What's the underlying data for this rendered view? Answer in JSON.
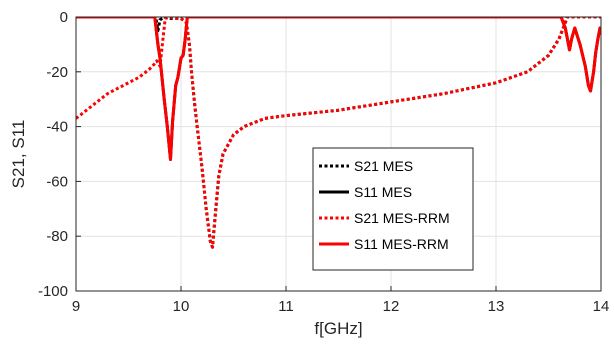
{
  "chart_data": {
    "type": "line",
    "xlabel": "f[GHz]",
    "ylabel": "S21, S11",
    "xlim": [
      9,
      14
    ],
    "ylim": [
      -100,
      0
    ],
    "xticks": [
      9,
      10,
      11,
      12,
      13,
      14
    ],
    "yticks": [
      0,
      -20,
      -40,
      -60,
      -80,
      -100
    ],
    "grid": true,
    "legend_position": "center",
    "series": [
      {
        "name": "S21 MES",
        "color": "#000000",
        "style": "dotted",
        "x": [
          9.0,
          9.76,
          9.78,
          9.8,
          9.85,
          9.9,
          9.95,
          10.0,
          10.05,
          10.08,
          10.1,
          10.13,
          10.16,
          10.2,
          10.24,
          10.28,
          10.3,
          10.32,
          10.36,
          10.4,
          10.5,
          10.6,
          10.8,
          11.0,
          11.5,
          12.0,
          12.5,
          13.0,
          13.3,
          13.5,
          13.6,
          13.65,
          13.68,
          13.7,
          13.73,
          13.78,
          13.83,
          13.87,
          13.9,
          13.93,
          13.95,
          13.98,
          14.0
        ],
        "y": [
          0,
          0,
          -5,
          -1,
          0,
          -0.5,
          -0.5,
          -0.5,
          -2,
          -10,
          -20,
          -32,
          -42,
          -55,
          -70,
          -82,
          -84,
          -75,
          -58,
          -50,
          -43,
          -40,
          -37,
          -36,
          -34,
          -31,
          -28,
          -24,
          -20,
          -14,
          -8,
          -3,
          0,
          0,
          0,
          0,
          0,
          0,
          0,
          0,
          0,
          0,
          0
        ]
      },
      {
        "name": "S11 MES",
        "color": "#000000",
        "style": "solid",
        "x": [
          9.0,
          9.75,
          9.78,
          9.8,
          9.84,
          9.87,
          9.9,
          9.92,
          9.95,
          9.97,
          10.0,
          10.02,
          10.04,
          10.06,
          10.1,
          10.2,
          11.0,
          12.0,
          13.0,
          13.62,
          13.66,
          13.68,
          13.7,
          13.72,
          13.75,
          13.8,
          13.85,
          13.88,
          13.9,
          13.93,
          13.95,
          13.97,
          13.99,
          14.0
        ],
        "y": [
          0,
          0,
          -10,
          -15,
          -30,
          -40,
          -52,
          -38,
          -25,
          -22,
          -15,
          -14,
          -8,
          0,
          0,
          0,
          0,
          0,
          0,
          0,
          -4,
          -8,
          -12,
          -8,
          -4,
          -10,
          -18,
          -25,
          -27,
          -20,
          -13,
          -8,
          -4,
          -6
        ]
      },
      {
        "name": "S21 MES-RRM",
        "color": "#ff0000",
        "style": "dotted",
        "x": [
          9.0,
          9.1,
          9.2,
          9.3,
          9.4,
          9.5,
          9.6,
          9.7,
          9.75,
          9.77,
          9.8,
          9.85,
          9.9,
          9.95,
          10.0,
          10.05,
          10.08,
          10.1,
          10.13,
          10.16,
          10.2,
          10.24,
          10.28,
          10.3,
          10.32,
          10.36,
          10.4,
          10.5,
          10.6,
          10.8,
          11.0,
          11.5,
          12.0,
          12.5,
          13.0,
          13.3,
          13.5,
          13.6,
          13.65,
          13.68,
          13.7,
          13.73,
          13.78,
          13.83,
          13.87,
          13.9,
          13.93,
          13.95,
          13.98,
          14.0
        ],
        "y": [
          -37,
          -34,
          -31,
          -28,
          -26,
          -24,
          -22,
          -19,
          -17,
          -16,
          -18,
          -0.5,
          0,
          -0.5,
          -0.5,
          -2,
          -10,
          -20,
          -32,
          -42,
          -55,
          -70,
          -82,
          -84,
          -75,
          -58,
          -50,
          -43,
          -40,
          -37,
          -36,
          -34,
          -31,
          -28,
          -24,
          -20,
          -14,
          -8,
          -3,
          0,
          0,
          0,
          0,
          0,
          0,
          0,
          0,
          0,
          0,
          0
        ]
      },
      {
        "name": "S11 MES-RRM",
        "color": "#ff0000",
        "style": "solid",
        "x": [
          9.0,
          9.75,
          9.78,
          9.8,
          9.84,
          9.87,
          9.9,
          9.92,
          9.95,
          9.97,
          10.0,
          10.02,
          10.04,
          10.06,
          10.1,
          10.2,
          11.0,
          12.0,
          13.0,
          13.62,
          13.66,
          13.68,
          13.7,
          13.72,
          13.75,
          13.8,
          13.85,
          13.88,
          13.9,
          13.93,
          13.95,
          13.97,
          13.99,
          14.0
        ],
        "y": [
          0,
          0,
          -10,
          -15,
          -30,
          -40,
          -52,
          -38,
          -25,
          -22,
          -15,
          -14,
          -8,
          0,
          0,
          0,
          0,
          0,
          0,
          0,
          -4,
          -8,
          -12,
          -8,
          -4,
          -10,
          -18,
          -25,
          -27,
          -20,
          -13,
          -8,
          -4,
          -6
        ]
      }
    ]
  }
}
